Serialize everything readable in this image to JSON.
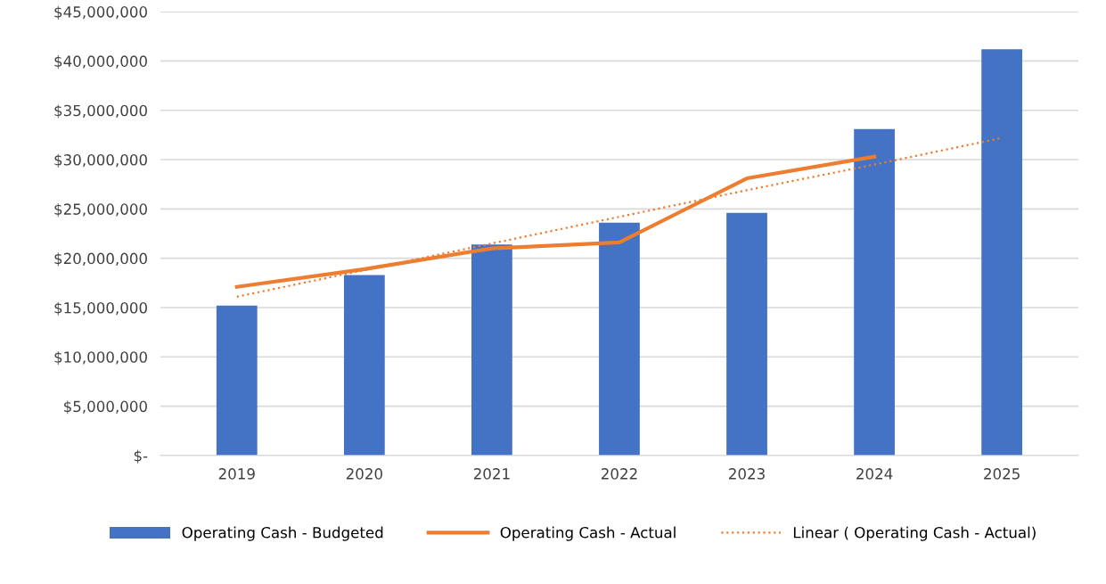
{
  "chart_data": {
    "type": "bar",
    "categories": [
      "2019",
      "2020",
      "2021",
      "2022",
      "2023",
      "2024",
      "2025"
    ],
    "series": [
      {
        "name": "Operating Cash - Budgeted",
        "color": "#4472c4",
        "values": [
          15200000,
          18300000,
          21400000,
          23600000,
          24600000,
          33100000,
          41200000
        ]
      },
      {
        "name": "Operating Cash - Actual",
        "type": "line",
        "color": "#ed7d31",
        "line_style": "solid",
        "values": [
          17100000,
          18900000,
          21000000,
          21600000,
          28100000,
          30300000,
          null
        ]
      },
      {
        "name": "Linear ( Operating Cash - Actual)",
        "type": "line",
        "color": "#ed7d31",
        "line_style": "dotted",
        "values": [
          16100000,
          18800000,
          21500000,
          24200000,
          26900000,
          29500000,
          32200000
        ]
      }
    ],
    "ylim": [
      0,
      45000000
    ],
    "yticks": [
      {
        "value": 0,
        "label": "$-"
      },
      {
        "value": 5000000,
        "label": "$5,000,000"
      },
      {
        "value": 10000000,
        "label": "$10,000,000"
      },
      {
        "value": 15000000,
        "label": "$15,000,000"
      },
      {
        "value": 20000000,
        "label": "$20,000,000"
      },
      {
        "value": 25000000,
        "label": "$25,000,000"
      },
      {
        "value": 30000000,
        "label": "$30,000,000"
      },
      {
        "value": 35000000,
        "label": "$35,000,000"
      },
      {
        "value": 40000000,
        "label": "$40,000,000"
      },
      {
        "value": 45000000,
        "label": "$45,000,000"
      }
    ],
    "grid": "y",
    "legend": "bottom",
    "marker": "none"
  }
}
